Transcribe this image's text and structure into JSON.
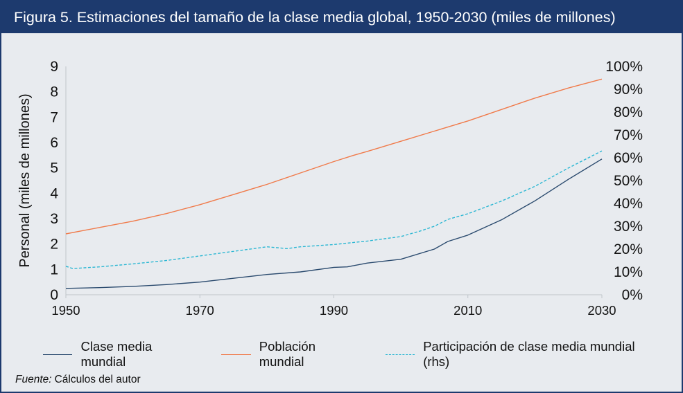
{
  "title": "Figura 5. Estimaciones del tamaño de la clase media global, 1950-2030 (miles de millones)",
  "source": {
    "label": "Fuente:",
    "text": "Cálculos del autor"
  },
  "colors": {
    "header": "#1d3a6e",
    "background": "#e8ebef",
    "clase_media": "#2a4a6e",
    "poblacion": "#f07a4a",
    "participacion": "#2bb7d3"
  },
  "chart_data": {
    "type": "line",
    "xlabel": "",
    "ylabel": "Personal (miles de millones)",
    "y2label": "",
    "xlim": [
      1950,
      2030
    ],
    "ylim": [
      0,
      9
    ],
    "y2lim": [
      0,
      1
    ],
    "x_ticks": [
      "1950",
      "1970",
      "1990",
      "2010",
      "2030"
    ],
    "y_ticks": [
      "0",
      "1",
      "2",
      "3",
      "4",
      "5",
      "6",
      "7",
      "8",
      "9"
    ],
    "y2_ticks": [
      "0%",
      "10%",
      "20%",
      "30%",
      "40%",
      "50%",
      "60%",
      "70%",
      "80%",
      "90%",
      "100%"
    ],
    "grid": false,
    "legend_position": "bottom",
    "series": [
      {
        "name": "Clase media mundial",
        "axis": "left",
        "style": "solid",
        "x": [
          1950,
          1955,
          1960,
          1965,
          1970,
          1975,
          1980,
          1985,
          1990,
          1992,
          1995,
          2000,
          2005,
          2007,
          2010,
          2015,
          2020,
          2025,
          2030
        ],
        "y": [
          0.25,
          0.28,
          0.33,
          0.4,
          0.5,
          0.65,
          0.8,
          0.9,
          1.08,
          1.1,
          1.25,
          1.4,
          1.8,
          2.1,
          2.35,
          2.95,
          3.7,
          4.55,
          5.35
        ]
      },
      {
        "name": "Población mundial",
        "axis": "left",
        "style": "solid",
        "x": [
          1950,
          1955,
          1960,
          1965,
          1970,
          1975,
          1980,
          1985,
          1990,
          1993,
          1995,
          2000,
          2005,
          2010,
          2015,
          2020,
          2025,
          2030
        ],
        "y": [
          2.4,
          2.65,
          2.9,
          3.2,
          3.55,
          3.95,
          4.35,
          4.8,
          5.25,
          5.5,
          5.65,
          6.05,
          6.45,
          6.85,
          7.3,
          7.75,
          8.15,
          8.5
        ]
      },
      {
        "name": "Participación de clase media mundial (rhs)",
        "axis": "right",
        "style": "dashed",
        "x": [
          1950,
          1951,
          1955,
          1960,
          1965,
          1970,
          1975,
          1980,
          1983,
          1985,
          1990,
          1995,
          2000,
          2003,
          2005,
          2007,
          2010,
          2015,
          2020,
          2025,
          2030
        ],
        "y": [
          0.125,
          0.115,
          0.122,
          0.135,
          0.15,
          0.17,
          0.19,
          0.21,
          0.202,
          0.21,
          0.22,
          0.235,
          0.255,
          0.28,
          0.3,
          0.33,
          0.355,
          0.41,
          0.475,
          0.555,
          0.63
        ]
      }
    ]
  }
}
